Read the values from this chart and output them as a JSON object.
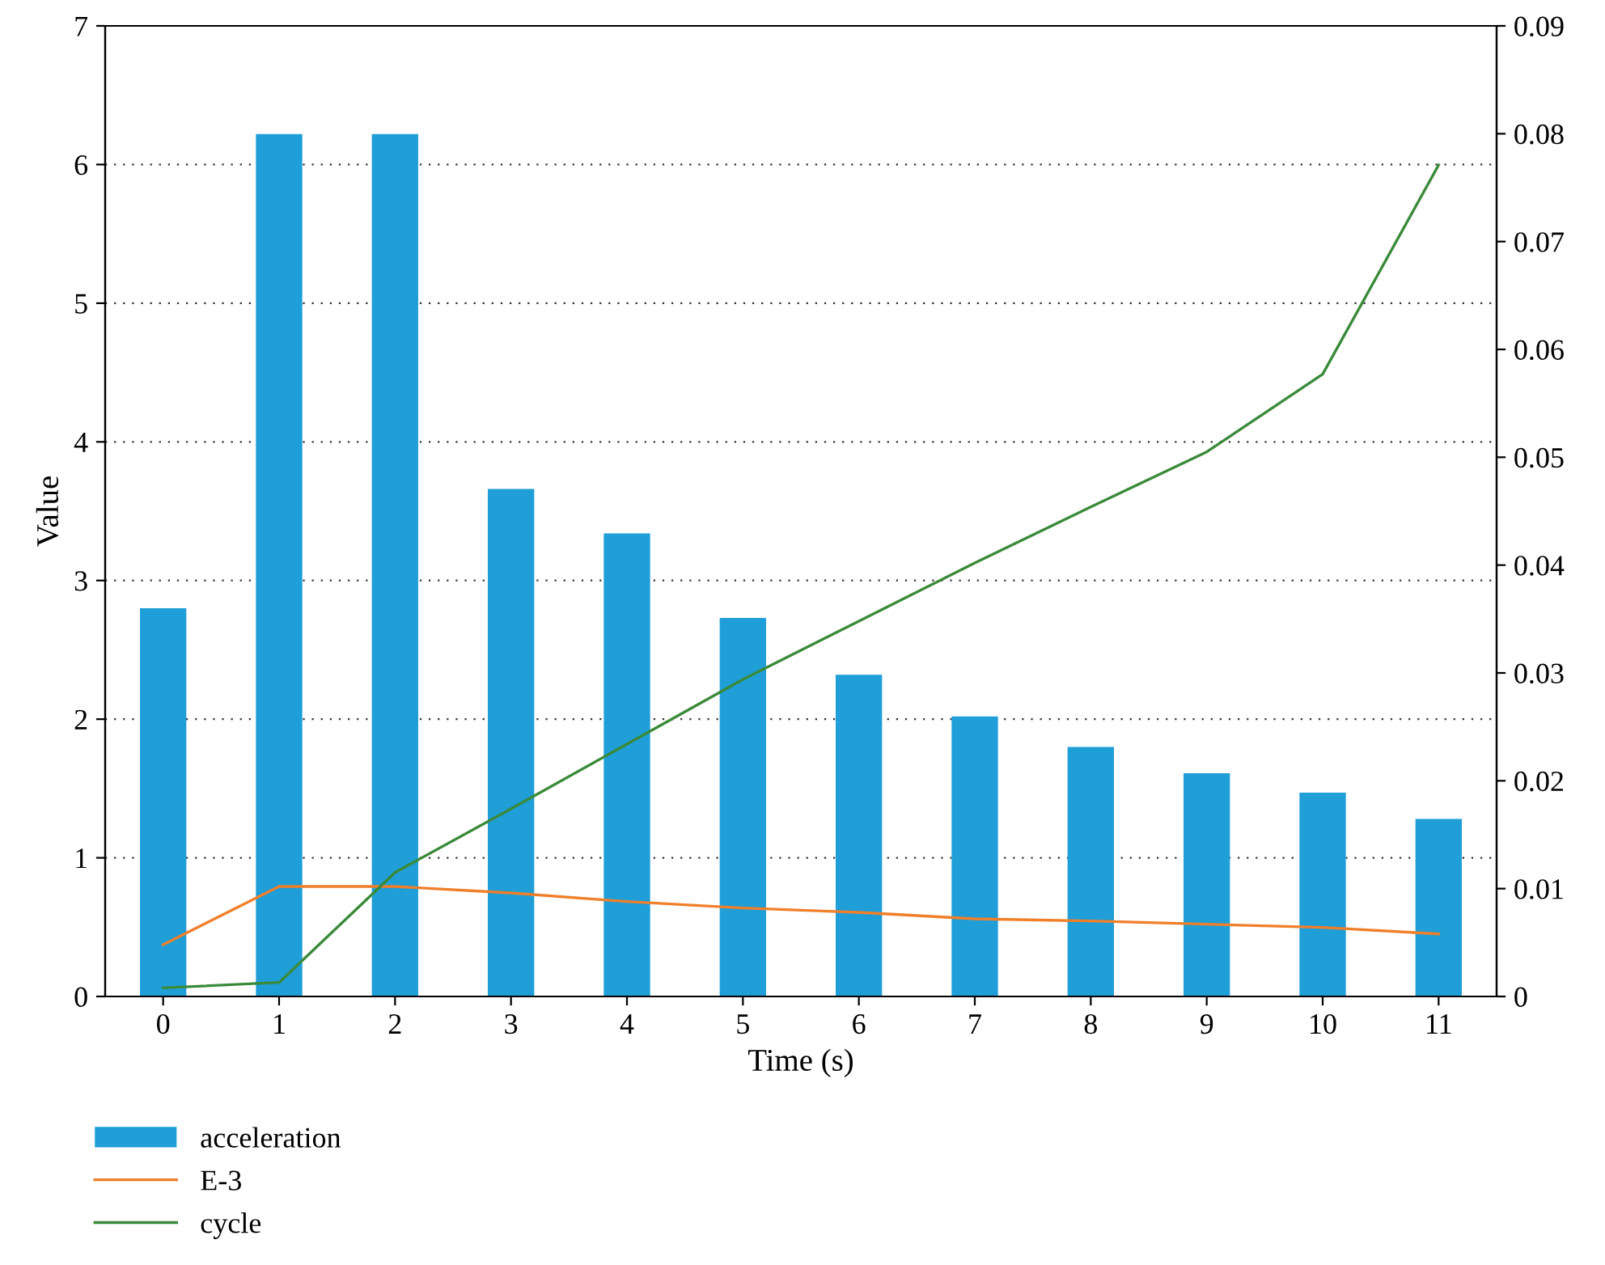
{
  "chart_data": {
    "type": "bar",
    "xlabel": "Time (s)",
    "ylabel": "Value",
    "categories": [
      "0",
      "1",
      "2",
      "3",
      "4",
      "5",
      "6",
      "7",
      "8",
      "9",
      "10",
      "11"
    ],
    "series": [
      {
        "name": "acceleration",
        "color": "#1f9ed8",
        "values": [
          2.8,
          6.22,
          6.22,
          3.66,
          3.34,
          2.73,
          2.32,
          2.02,
          1.8,
          1.61,
          1.47,
          1.28
        ]
      },
      {
        "name": "E-3",
        "type": "line",
        "axis": "y2",
        "color": "#f07f2a",
        "values": [
          0.0048,
          0.0102,
          0.0102,
          0.0096,
          0.0088,
          0.0082,
          0.0078,
          0.0072,
          0.007,
          0.0067,
          0.0064,
          0.0058
        ]
      },
      {
        "name": "cycle",
        "type": "line",
        "axis": "y2",
        "color": "#3a8a3a",
        "values": [
          0.0008,
          0.0013,
          0.0115,
          0.0174,
          0.0234,
          0.0294,
          0.0348,
          0.0402,
          0.0454,
          0.0505,
          0.0577,
          0.0771
        ]
      }
    ],
    "ylim": [
      0,
      7
    ],
    "yticks": [
      0,
      1,
      2,
      3,
      4,
      5,
      6,
      7
    ],
    "y2lim": [
      0,
      0.09
    ],
    "y2ticks": [
      0,
      0.01,
      0.02,
      0.03,
      0.04,
      0.05,
      0.06,
      0.07,
      0.08,
      0.09
    ],
    "grid": "y",
    "legend": "bottom left",
    "line_style": "solid",
    "marker": "none"
  }
}
